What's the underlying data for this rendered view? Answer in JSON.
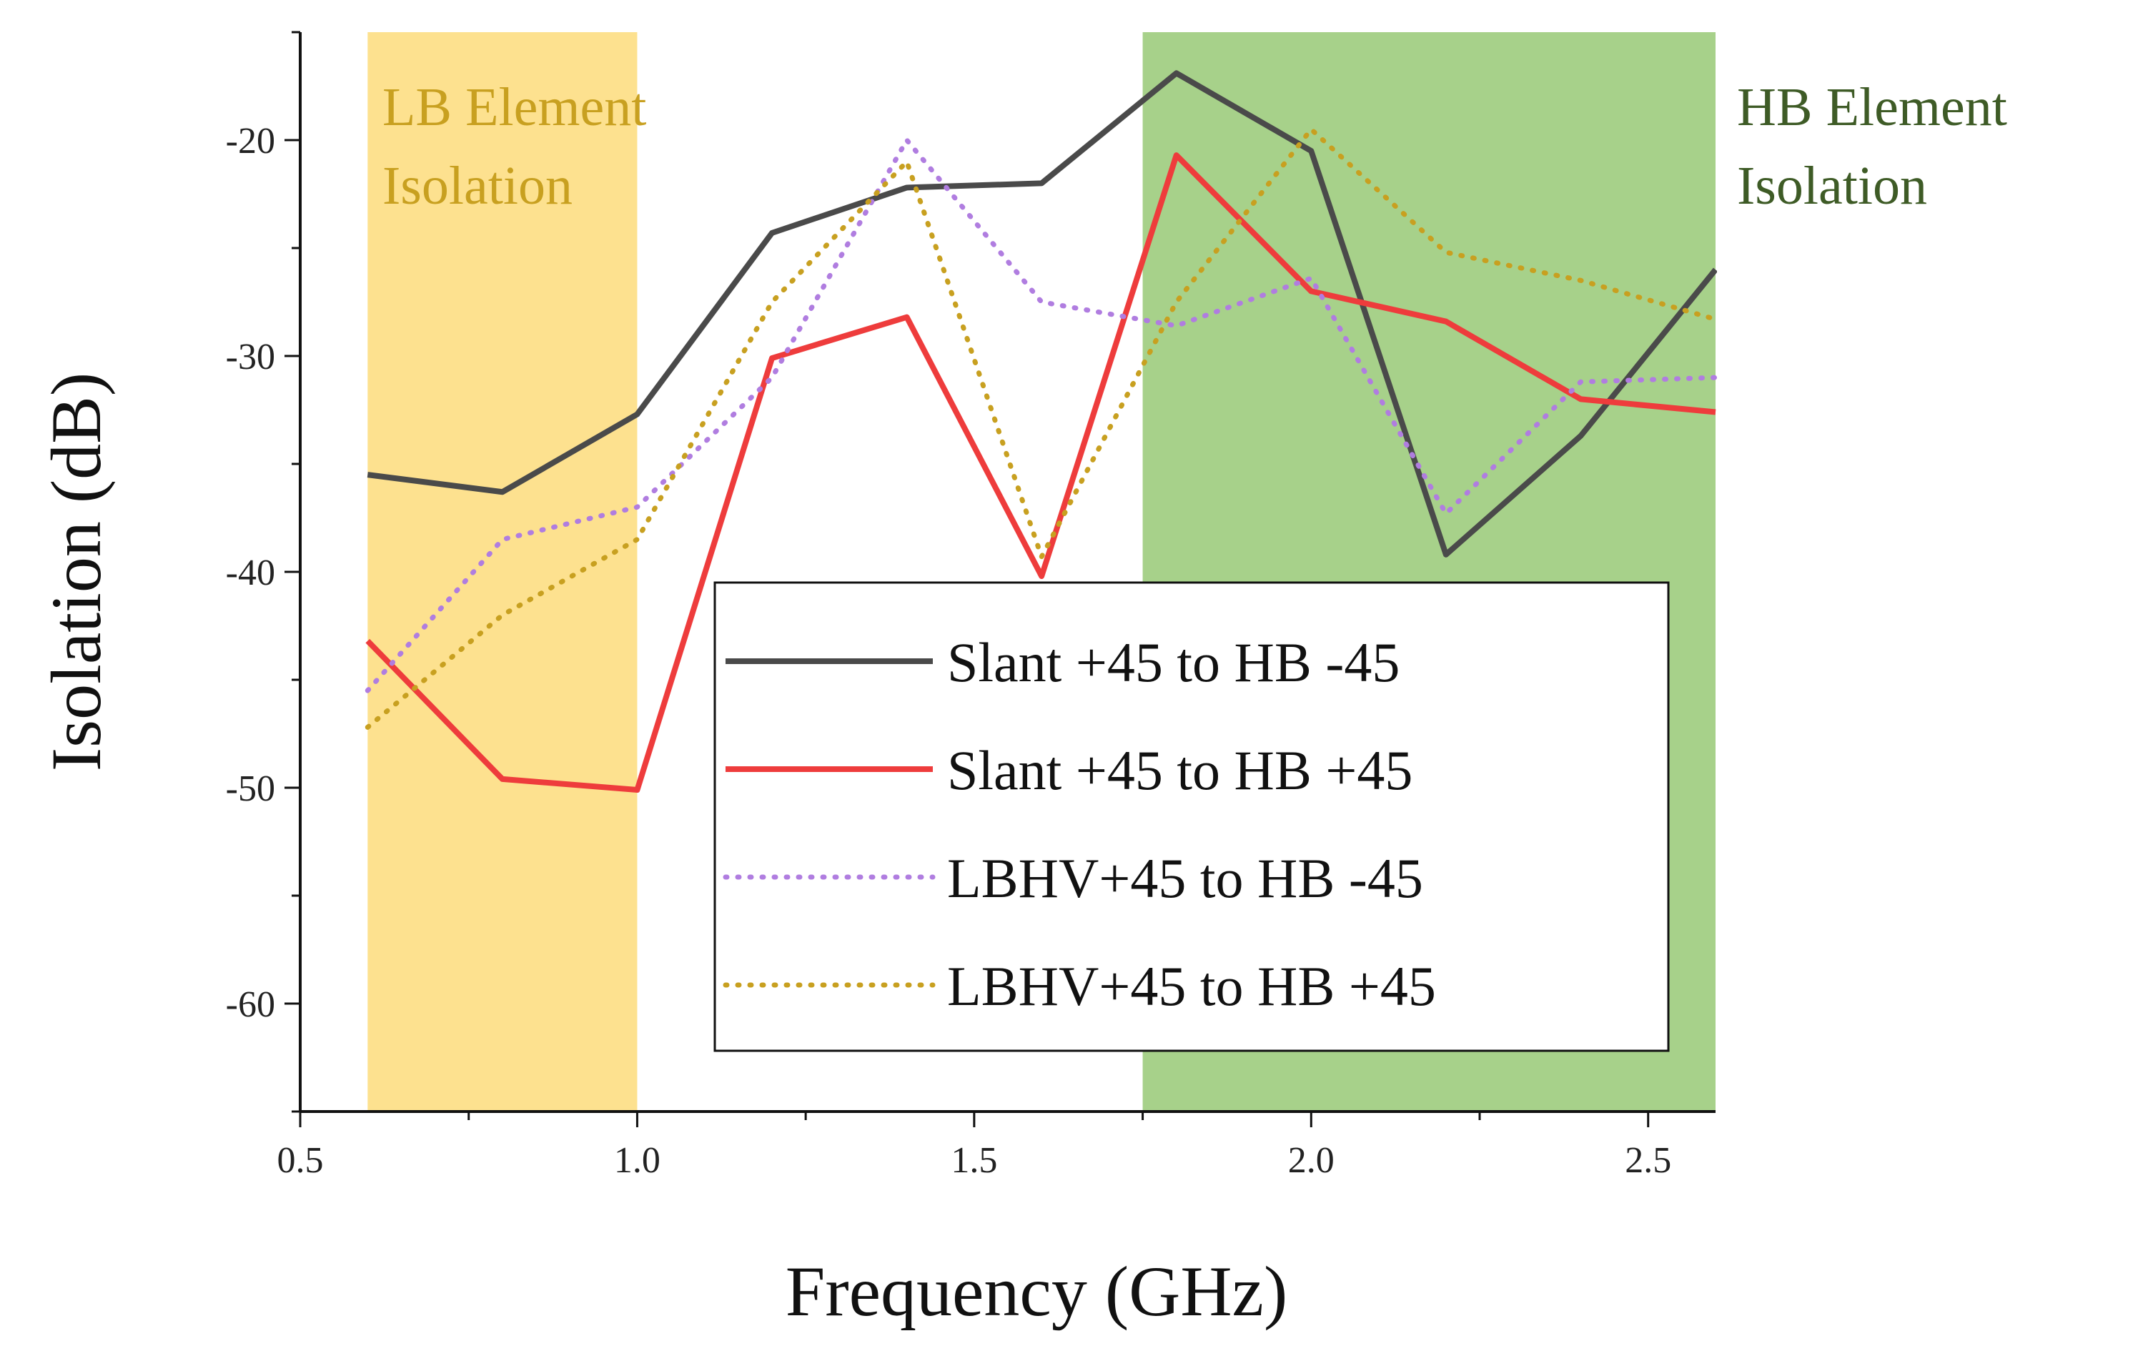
{
  "chart_data": {
    "type": "line",
    "title": "",
    "xlabel": "Frequency (GHz)",
    "ylabel": "Isolation (dB)",
    "xlim": [
      0.5,
      2.6
    ],
    "ylim": [
      -65,
      -15
    ],
    "xticks": [
      0.5,
      1.0,
      1.5,
      2.0,
      2.5
    ],
    "xtick_labels": [
      "0.5",
      "1.0",
      "1.5",
      "2.0",
      "2.5"
    ],
    "yticks": [
      -60,
      -50,
      -40,
      -30,
      -20
    ],
    "ytick_labels": [
      "-60",
      "-50",
      "-40",
      "-30",
      "-20"
    ],
    "x": [
      0.6,
      0.8,
      1.0,
      1.2,
      1.4,
      1.6,
      1.8,
      2.0,
      2.2,
      2.4,
      2.6
    ],
    "series": [
      {
        "name": "Slant +45 to HB -45",
        "style": "solid",
        "color": "#4a4a4a",
        "values": [
          -35.5,
          -36.3,
          -32.7,
          -24.3,
          -22.2,
          -22.0,
          -16.9,
          -20.5,
          -39.2,
          -33.7,
          -26.0
        ]
      },
      {
        "name": "Slant +45 to HB +45",
        "style": "solid",
        "color": "#ee3c3c",
        "values": [
          -43.2,
          -49.6,
          -50.1,
          -30.1,
          -28.2,
          -40.2,
          -20.7,
          -27.0,
          -28.4,
          -32.0,
          -32.6
        ]
      },
      {
        "name": "LBHV+45 to HB -45",
        "style": "dotted",
        "color": "#b07de0",
        "values": [
          -45.5,
          -38.5,
          -37.0,
          -31.0,
          -20.0,
          -27.5,
          -28.6,
          -26.4,
          -37.3,
          -31.2,
          -31.0
        ]
      },
      {
        "name": "LBHV+45 to HB +45",
        "style": "dotted",
        "color": "#c8a020",
        "values": [
          -47.2,
          -42.0,
          -38.5,
          -27.5,
          -21.0,
          -39.3,
          -27.5,
          -19.5,
          -25.2,
          -26.5,
          -28.3
        ]
      }
    ],
    "shaded_regions": [
      {
        "label_line1": "LB Element",
        "label_line2": "Isolation",
        "x_range": [
          0.6,
          1.0
        ],
        "color": "#fde18f",
        "label_color": "#c8a020"
      },
      {
        "label_line1": "HB Element",
        "label_line2": "Isolation",
        "x_range": [
          1.75,
          2.6
        ],
        "color": "#a7d18a",
        "label_color": "#3e5b26"
      }
    ],
    "legend_position": "center-right"
  }
}
